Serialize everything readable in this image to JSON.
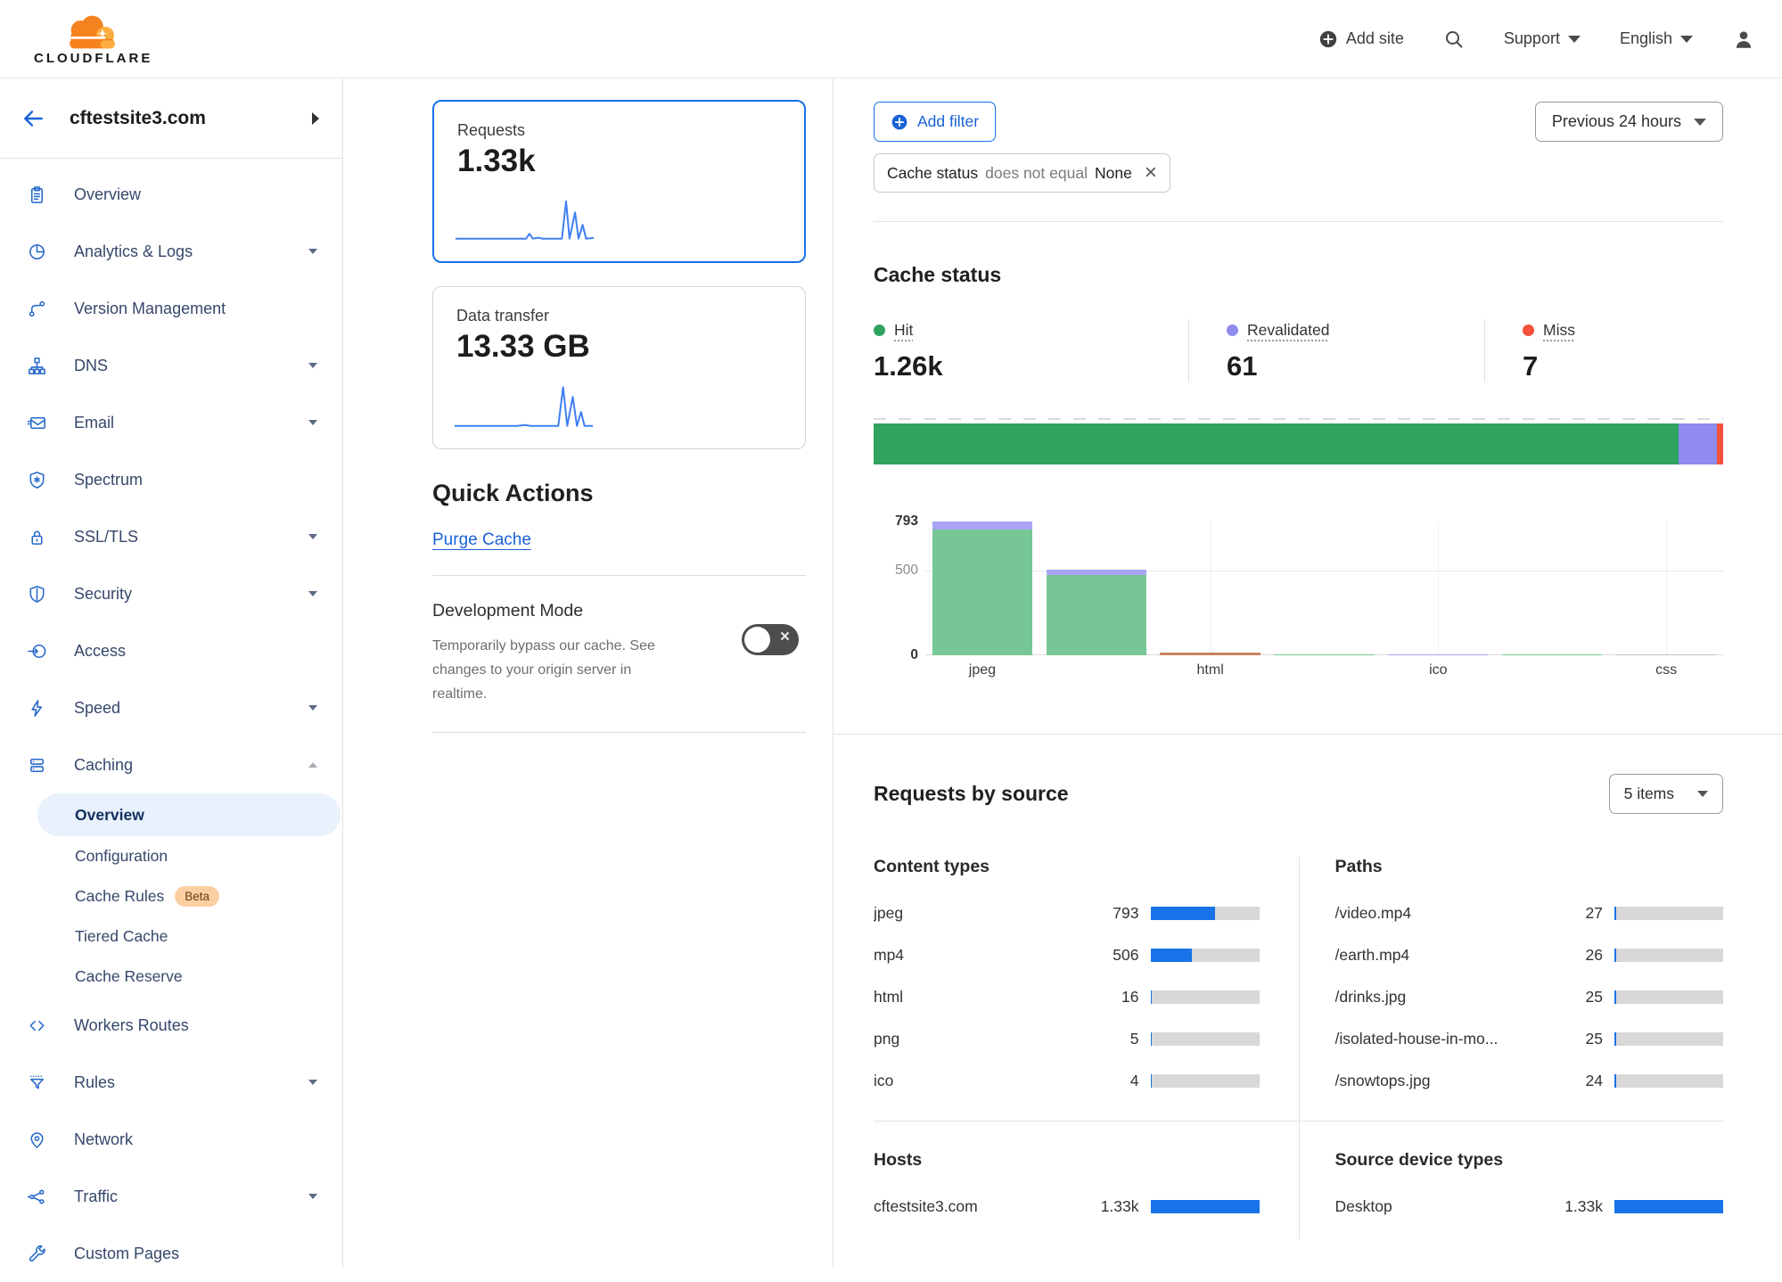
{
  "header": {
    "brand": "CLOUDFLARE",
    "add_site_label": "Add site",
    "support_label": "Support",
    "language_label": "English"
  },
  "sidebar": {
    "site": "cftestsite3.com",
    "items": [
      {
        "label": "Overview",
        "icon": "clipboard-icon"
      },
      {
        "label": "Analytics & Logs",
        "icon": "pie-chart-icon",
        "caret": true
      },
      {
        "label": "Version Management",
        "icon": "branch-icon"
      },
      {
        "label": "DNS",
        "icon": "hierarchy-icon",
        "caret": true
      },
      {
        "label": "Email",
        "icon": "email-icon",
        "caret": true
      },
      {
        "label": "Spectrum",
        "icon": "shield-star-icon"
      },
      {
        "label": "SSL/TLS",
        "icon": "lock-icon",
        "caret": true
      },
      {
        "label": "Security",
        "icon": "shield-icon",
        "caret": true
      },
      {
        "label": "Access",
        "icon": "login-arrow-icon"
      },
      {
        "label": "Speed",
        "icon": "bolt-icon",
        "caret": true
      },
      {
        "label": "Caching",
        "icon": "server-stack-icon",
        "expanded": true,
        "children": [
          {
            "label": "Overview",
            "selected": true
          },
          {
            "label": "Configuration"
          },
          {
            "label": "Cache Rules",
            "badge": "Beta"
          },
          {
            "label": "Tiered Cache"
          },
          {
            "label": "Cache Reserve"
          }
        ]
      },
      {
        "label": "Workers Routes",
        "icon": "code-icon"
      },
      {
        "label": "Rules",
        "icon": "funnel-icon",
        "caret": true
      },
      {
        "label": "Network",
        "icon": "pin-icon"
      },
      {
        "label": "Traffic",
        "icon": "share-icon",
        "caret": true
      },
      {
        "label": "Custom Pages",
        "icon": "wrench-icon"
      }
    ]
  },
  "summary_cards": [
    {
      "label": "Requests",
      "value": "1.33k",
      "selected": true,
      "sparkline": [
        [
          0,
          34
        ],
        [
          40,
          34
        ],
        [
          51,
          34
        ],
        [
          53.5,
          30.5
        ],
        [
          56,
          34
        ],
        [
          60,
          33.3
        ],
        [
          63,
          34
        ],
        [
          77,
          34
        ],
        [
          80,
          7
        ],
        [
          82.5,
          34
        ],
        [
          86.5,
          15
        ],
        [
          89,
          34
        ],
        [
          92,
          24
        ],
        [
          94.5,
          34
        ],
        [
          100,
          33.5
        ]
      ]
    },
    {
      "label": "Data transfer",
      "value": "13.33 GB",
      "selected": false,
      "sparkline": [
        [
          0,
          34
        ],
        [
          45,
          34
        ],
        [
          51,
          33.4
        ],
        [
          55,
          34
        ],
        [
          75,
          34
        ],
        [
          78.5,
          6
        ],
        [
          81.5,
          34
        ],
        [
          85.5,
          13
        ],
        [
          88.5,
          34
        ],
        [
          91.5,
          24
        ],
        [
          94,
          34
        ],
        [
          100,
          34
        ]
      ]
    }
  ],
  "quick_actions": {
    "title": "Quick Actions",
    "purge_label": "Purge Cache",
    "dev_mode": {
      "title": "Development Mode",
      "description": "Temporarily bypass our cache. See changes to your origin server in realtime.",
      "enabled": false
    }
  },
  "filters": {
    "add_filter_label": "Add filter",
    "chip": {
      "field": "Cache status",
      "operator": "does not equal",
      "value": "None"
    },
    "time_range": "Previous 24 hours"
  },
  "palette": {
    "green": "#2fa360",
    "purple": "#8f8bef",
    "red": "#f6513b",
    "green_light": "#76c795",
    "purple_light": "#a9a5f4",
    "orange_brown": "#c8825f",
    "gray_flat": "#b9c5ca",
    "bar_blue": "#1973e8",
    "accent_blue": "#1a62d6",
    "selected_border": "#1672e6"
  },
  "cache_status": {
    "title": "Cache status",
    "legend": [
      {
        "label": "Hit",
        "value": "1.26k",
        "color_key": "green",
        "pct": 94.8
      },
      {
        "label": "Revalidated",
        "value": "61",
        "color_key": "purple",
        "pct": 4.5
      },
      {
        "label": "Miss",
        "value": "7",
        "color_key": "red",
        "pct": 0.7
      }
    ],
    "bar_chart": {
      "type": "bar",
      "ymax": 793,
      "yticks": [
        {
          "v": 793,
          "text": "793",
          "style": "strong"
        },
        {
          "v": 500,
          "text": "500",
          "style": "weak"
        },
        {
          "v": 0,
          "text": "0",
          "style": "strong"
        }
      ],
      "gridline_at": 500,
      "vgrid_slots": [
        2,
        4,
        6
      ],
      "bars": [
        {
          "label": "jpeg",
          "segments": [
            {
              "color_key": "green_light",
              "value": 748
            },
            {
              "color_key": "purple_light",
              "value": 45
            }
          ]
        },
        {
          "label": "",
          "segments": [
            {
              "color_key": "green_light",
              "value": 478
            },
            {
              "color_key": "purple_light",
              "value": 28
            }
          ]
        },
        {
          "label": "html",
          "segments": [
            {
              "color_key": "orange_brown",
              "value": 16
            }
          ]
        },
        {
          "label": "",
          "segments": [
            {
              "color_key": "green_light",
              "value": 6
            }
          ]
        },
        {
          "label": "ico",
          "segments": [
            {
              "color_key": "purple_light",
              "value": 5
            }
          ]
        },
        {
          "label": "",
          "segments": [
            {
              "color_key": "green_light",
              "value": 2
            }
          ]
        },
        {
          "label": "css",
          "segments": [
            {
              "color_key": "gray_flat",
              "value": 1
            }
          ]
        }
      ]
    }
  },
  "requests_by_source": {
    "title": "Requests by source",
    "items_dropdown": "5 items",
    "bar_max": 1330,
    "columns": [
      {
        "groups": [
          {
            "title": "Content types",
            "rows": [
              {
                "label": "jpeg",
                "value": 793,
                "display": "793"
              },
              {
                "label": "mp4",
                "value": 506,
                "display": "506"
              },
              {
                "label": "html",
                "value": 16,
                "display": "16"
              },
              {
                "label": "png",
                "value": 5,
                "display": "5"
              },
              {
                "label": "ico",
                "value": 4,
                "display": "4"
              }
            ]
          },
          {
            "title": "Hosts",
            "rows": [
              {
                "label": "cftestsite3.com",
                "value": 1330,
                "display": "1.33k"
              }
            ]
          }
        ]
      },
      {
        "groups": [
          {
            "title": "Paths",
            "rows": [
              {
                "label": "/video.mp4",
                "value": 27,
                "display": "27"
              },
              {
                "label": "/earth.mp4",
                "value": 26,
                "display": "26"
              },
              {
                "label": "/drinks.jpg",
                "value": 25,
                "display": "25"
              },
              {
                "label": "/isolated-house-in-mo...",
                "value": 25,
                "display": "25"
              },
              {
                "label": "/snowtops.jpg",
                "value": 24,
                "display": "24"
              }
            ]
          },
          {
            "title": "Source device types",
            "rows": [
              {
                "label": "Desktop",
                "value": 1330,
                "display": "1.33k"
              }
            ]
          }
        ]
      }
    ]
  }
}
